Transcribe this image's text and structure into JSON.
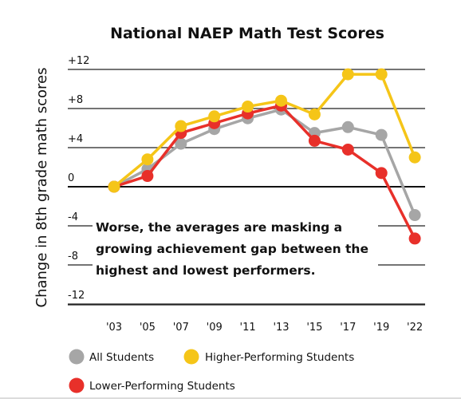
{
  "chart_data": {
    "type": "line",
    "title": "National NAEP Math Test Scores",
    "ylabel": "Change in 8th grade math scores",
    "xlabel": "",
    "categories": [
      "'03",
      "'05",
      "'07",
      "'09",
      "'11",
      "'13",
      "'15",
      "'17",
      "'19",
      "'22"
    ],
    "y_ticks": [
      "+12",
      "+8",
      "+4",
      "0",
      "-4",
      "-8",
      "-12"
    ],
    "y_tick_values": [
      12,
      8,
      4,
      0,
      -4,
      -8,
      -12
    ],
    "ylim": [
      -14,
      12
    ],
    "grid": true,
    "legend_position": "bottom-left",
    "series": [
      {
        "name": "All Students",
        "color": "#a6a6a6",
        "values": [
          0,
          1.8,
          4.4,
          5.9,
          7.0,
          7.9,
          5.5,
          6.1,
          5.3,
          -2.9
        ]
      },
      {
        "name": "Higher-Performing Students",
        "color": "#f5c518",
        "values": [
          0,
          2.8,
          6.2,
          7.2,
          8.2,
          8.8,
          7.4,
          11.5,
          11.5,
          3.0
        ]
      },
      {
        "name": "Lower-Performing Students",
        "color": "#e8302a",
        "values": [
          0,
          1.1,
          5.5,
          6.5,
          7.5,
          8.3,
          4.7,
          3.8,
          1.4,
          -5.3
        ]
      }
    ],
    "annotation": [
      "Worse, the averages are masking a",
      "growing achievement gap between the",
      "highest and lowest performers."
    ]
  }
}
